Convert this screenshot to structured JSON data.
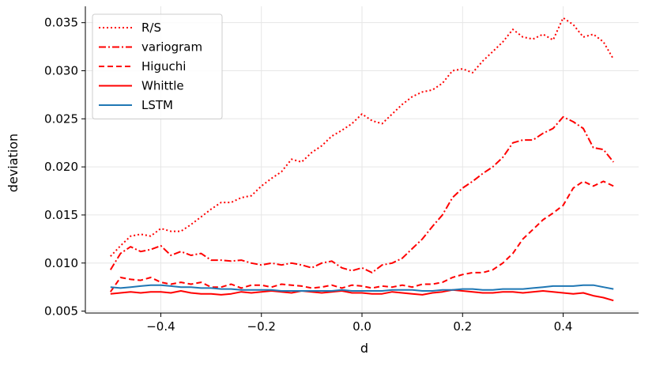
{
  "chart_data": {
    "type": "line",
    "title": "",
    "xlabel": "d",
    "ylabel": "deviation",
    "xlim": [
      -0.55,
      0.55
    ],
    "ylim": [
      0.0048,
      0.0367
    ],
    "grid": true,
    "legend_position": "top-left",
    "xticks": [
      -0.4,
      -0.2,
      0.0,
      0.2,
      0.4
    ],
    "xtick_labels": [
      "−0.4",
      "−0.2",
      "0.0",
      "0.2",
      "0.4"
    ],
    "yticks": [
      0.005,
      0.01,
      0.015,
      0.02,
      0.025,
      0.03,
      0.035
    ],
    "ytick_labels": [
      "0.005",
      "0.010",
      "0.015",
      "0.020",
      "0.025",
      "0.030",
      "0.035"
    ],
    "series": [
      {
        "name": "R/S",
        "color": "#ff0000",
        "style": "dotted",
        "x": [
          -0.5,
          -0.48,
          -0.46,
          -0.44,
          -0.42,
          -0.4,
          -0.38,
          -0.36,
          -0.34,
          -0.32,
          -0.3,
          -0.28,
          -0.26,
          -0.24,
          -0.22,
          -0.2,
          -0.18,
          -0.16,
          -0.14,
          -0.12,
          -0.1,
          -0.08,
          -0.06,
          -0.04,
          -0.02,
          0.0,
          0.02,
          0.04,
          0.06,
          0.08,
          0.1,
          0.12,
          0.14,
          0.16,
          0.18,
          0.2,
          0.22,
          0.24,
          0.26,
          0.28,
          0.3,
          0.32,
          0.34,
          0.36,
          0.38,
          0.4,
          0.42,
          0.44,
          0.46,
          0.48,
          0.5
        ],
        "y": [
          0.0107,
          0.0118,
          0.0128,
          0.013,
          0.0128,
          0.0136,
          0.0133,
          0.0133,
          0.014,
          0.0148,
          0.0156,
          0.0163,
          0.0163,
          0.0168,
          0.017,
          0.018,
          0.0188,
          0.0195,
          0.0208,
          0.0205,
          0.0215,
          0.0222,
          0.0232,
          0.0238,
          0.0245,
          0.0255,
          0.0248,
          0.0245,
          0.0255,
          0.0265,
          0.0273,
          0.0278,
          0.028,
          0.0287,
          0.03,
          0.0302,
          0.0298,
          0.031,
          0.032,
          0.033,
          0.0343,
          0.0335,
          0.0333,
          0.0338,
          0.0332,
          0.0355,
          0.0348,
          0.0335,
          0.0338,
          0.033,
          0.0312
        ]
      },
      {
        "name": "variogram",
        "color": "#ff0000",
        "style": "dashdot",
        "x": [
          -0.5,
          -0.48,
          -0.46,
          -0.44,
          -0.42,
          -0.4,
          -0.38,
          -0.36,
          -0.34,
          -0.32,
          -0.3,
          -0.28,
          -0.26,
          -0.24,
          -0.22,
          -0.2,
          -0.18,
          -0.16,
          -0.14,
          -0.12,
          -0.1,
          -0.08,
          -0.06,
          -0.04,
          -0.02,
          0.0,
          0.02,
          0.04,
          0.06,
          0.08,
          0.1,
          0.12,
          0.14,
          0.16,
          0.18,
          0.2,
          0.22,
          0.24,
          0.26,
          0.28,
          0.3,
          0.32,
          0.34,
          0.36,
          0.38,
          0.4,
          0.42,
          0.44,
          0.46,
          0.48,
          0.5
        ],
        "y": [
          0.0093,
          0.011,
          0.0117,
          0.0112,
          0.0114,
          0.0118,
          0.0108,
          0.0112,
          0.0108,
          0.011,
          0.0103,
          0.0103,
          0.0102,
          0.0103,
          0.01,
          0.0098,
          0.01,
          0.0098,
          0.01,
          0.0098,
          0.0095,
          0.01,
          0.0102,
          0.0095,
          0.0092,
          0.0095,
          0.009,
          0.0098,
          0.01,
          0.0105,
          0.0115,
          0.0125,
          0.0138,
          0.015,
          0.0168,
          0.0178,
          0.0185,
          0.0193,
          0.02,
          0.021,
          0.0225,
          0.0228,
          0.0228,
          0.0235,
          0.024,
          0.0252,
          0.0247,
          0.024,
          0.022,
          0.0218,
          0.0205
        ]
      },
      {
        "name": "Higuchi",
        "color": "#ff0000",
        "style": "dashed",
        "x": [
          -0.5,
          -0.48,
          -0.46,
          -0.44,
          -0.42,
          -0.4,
          -0.38,
          -0.36,
          -0.34,
          -0.32,
          -0.3,
          -0.28,
          -0.26,
          -0.24,
          -0.22,
          -0.2,
          -0.18,
          -0.16,
          -0.14,
          -0.12,
          -0.1,
          -0.08,
          -0.06,
          -0.04,
          -0.02,
          0.0,
          0.02,
          0.04,
          0.06,
          0.08,
          0.1,
          0.12,
          0.14,
          0.16,
          0.18,
          0.2,
          0.22,
          0.24,
          0.26,
          0.28,
          0.3,
          0.32,
          0.34,
          0.36,
          0.38,
          0.4,
          0.42,
          0.44,
          0.46,
          0.48,
          0.5
        ],
        "y": [
          0.007,
          0.0085,
          0.0083,
          0.0082,
          0.0085,
          0.008,
          0.0078,
          0.008,
          0.0078,
          0.008,
          0.0075,
          0.0075,
          0.0078,
          0.0074,
          0.0077,
          0.0077,
          0.0075,
          0.0078,
          0.0077,
          0.0076,
          0.0074,
          0.0075,
          0.0077,
          0.0074,
          0.0077,
          0.0076,
          0.0074,
          0.0076,
          0.0075,
          0.0077,
          0.0075,
          0.0078,
          0.0078,
          0.008,
          0.0085,
          0.0088,
          0.009,
          0.009,
          0.0093,
          0.01,
          0.011,
          0.0125,
          0.0135,
          0.0145,
          0.0152,
          0.016,
          0.0178,
          0.0185,
          0.018,
          0.0185,
          0.018
        ]
      },
      {
        "name": "Whittle",
        "color": "#ff0000",
        "style": "solid",
        "x": [
          -0.5,
          -0.48,
          -0.46,
          -0.44,
          -0.42,
          -0.4,
          -0.38,
          -0.36,
          -0.34,
          -0.32,
          -0.3,
          -0.28,
          -0.26,
          -0.24,
          -0.22,
          -0.2,
          -0.18,
          -0.16,
          -0.14,
          -0.12,
          -0.1,
          -0.08,
          -0.06,
          -0.04,
          -0.02,
          0.0,
          0.02,
          0.04,
          0.06,
          0.08,
          0.1,
          0.12,
          0.14,
          0.16,
          0.18,
          0.2,
          0.22,
          0.24,
          0.26,
          0.28,
          0.3,
          0.32,
          0.34,
          0.36,
          0.38,
          0.4,
          0.42,
          0.44,
          0.46,
          0.48,
          0.5
        ],
        "y": [
          0.0068,
          0.0069,
          0.007,
          0.0069,
          0.007,
          0.007,
          0.0069,
          0.0071,
          0.0069,
          0.0068,
          0.0068,
          0.0067,
          0.0068,
          0.007,
          0.0069,
          0.007,
          0.0071,
          0.007,
          0.0069,
          0.0071,
          0.007,
          0.0069,
          0.007,
          0.0071,
          0.0069,
          0.0069,
          0.0068,
          0.0068,
          0.007,
          0.0069,
          0.0068,
          0.0067,
          0.0069,
          0.007,
          0.0072,
          0.0071,
          0.007,
          0.0069,
          0.0069,
          0.007,
          0.007,
          0.0069,
          0.007,
          0.0071,
          0.007,
          0.0069,
          0.0068,
          0.0069,
          0.0066,
          0.0064,
          0.0061
        ]
      },
      {
        "name": "LSTM",
        "color": "#1f77b4",
        "style": "solid",
        "x": [
          -0.5,
          -0.48,
          -0.46,
          -0.44,
          -0.42,
          -0.4,
          -0.38,
          -0.36,
          -0.34,
          -0.32,
          -0.3,
          -0.28,
          -0.26,
          -0.24,
          -0.22,
          -0.2,
          -0.18,
          -0.16,
          -0.14,
          -0.12,
          -0.1,
          -0.08,
          -0.06,
          -0.04,
          -0.02,
          0.0,
          0.02,
          0.04,
          0.06,
          0.08,
          0.1,
          0.12,
          0.14,
          0.16,
          0.18,
          0.2,
          0.22,
          0.24,
          0.26,
          0.28,
          0.3,
          0.32,
          0.34,
          0.36,
          0.38,
          0.4,
          0.42,
          0.44,
          0.46,
          0.48,
          0.5
        ],
        "y": [
          0.0075,
          0.0074,
          0.0075,
          0.0076,
          0.0077,
          0.0077,
          0.0076,
          0.0075,
          0.0075,
          0.0074,
          0.0074,
          0.0073,
          0.0073,
          0.0072,
          0.0072,
          0.0072,
          0.0072,
          0.0071,
          0.0071,
          0.0071,
          0.0071,
          0.0071,
          0.0071,
          0.0072,
          0.0071,
          0.0071,
          0.0071,
          0.0071,
          0.0072,
          0.0072,
          0.0072,
          0.0071,
          0.0071,
          0.0072,
          0.0072,
          0.0073,
          0.0073,
          0.0072,
          0.0072,
          0.0073,
          0.0073,
          0.0073,
          0.0074,
          0.0075,
          0.0076,
          0.0076,
          0.0076,
          0.0077,
          0.0077,
          0.0075,
          0.0073
        ]
      }
    ]
  }
}
